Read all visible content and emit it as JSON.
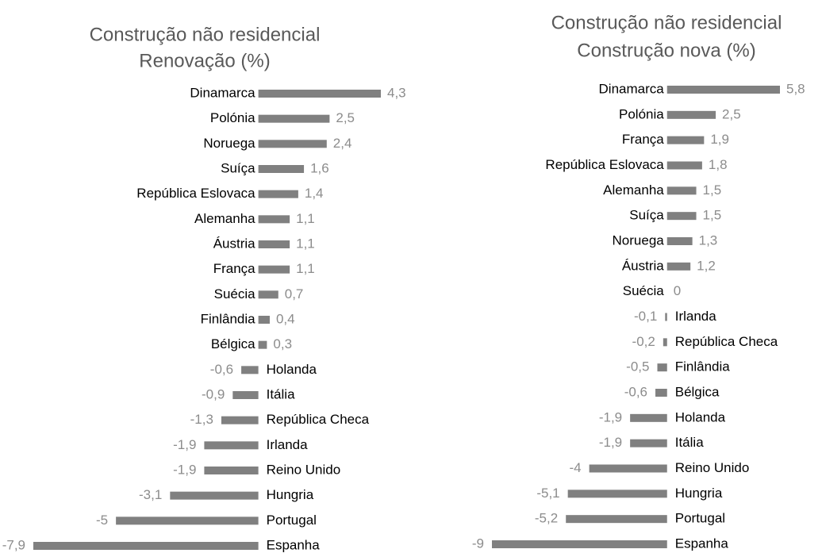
{
  "chart_data": [
    {
      "type": "bar",
      "orientation": "horizontal",
      "title": "Construção não residencial",
      "subtitle": "Renovação (%)",
      "color": "#808080",
      "categories": [
        "Dinamarca",
        "Polónia",
        "Noruega",
        "Suíça",
        "República Eslovaca",
        "Alemanha",
        "Áustria",
        "França",
        "Suécia",
        "Finlândia",
        "Bélgica",
        "Holanda",
        "Itália",
        "República Checa",
        "Irlanda",
        "Reino Unido",
        "Hungria",
        "Portugal",
        "Espanha"
      ],
      "values": [
        4.3,
        2.5,
        2.4,
        1.6,
        1.4,
        1.1,
        1.1,
        1.1,
        0.7,
        0.4,
        0.3,
        -0.6,
        -0.9,
        -1.3,
        -1.9,
        -1.9,
        -3.1,
        -5,
        -7.9
      ],
      "value_labels": [
        "4,3",
        "2,5",
        "2,4",
        "1,6",
        "1,4",
        "1,1",
        "1,1",
        "1,1",
        "0,7",
        "0,4",
        "0,3",
        "-0,6",
        "-0,9",
        "-1,3",
        "-1,9",
        "-1,9",
        "-3,1",
        "-5",
        "-7,9"
      ]
    },
    {
      "type": "bar",
      "orientation": "horizontal",
      "title": "Construção não residencial",
      "subtitle": "Construção nova (%)",
      "color": "#808080",
      "categories": [
        "Dinamarca",
        "Polónia",
        "França",
        "República Eslovaca",
        "Alemanha",
        "Suíça",
        "Noruega",
        "Áustria",
        "Suécia",
        "Irlanda",
        "República Checa",
        "Finlândia",
        "Bélgica",
        "Holanda",
        "Itália",
        "Reino Unido",
        "Hungria",
        "Portugal",
        "Espanha"
      ],
      "values": [
        5.8,
        2.5,
        1.9,
        1.8,
        1.5,
        1.5,
        1.3,
        1.2,
        0,
        -0.1,
        -0.2,
        -0.5,
        -0.6,
        -1.9,
        -1.9,
        -4,
        -5.1,
        -5.2,
        -9
      ],
      "value_labels": [
        "5,8",
        "2,5",
        "1,9",
        "1,8",
        "1,5",
        "1,5",
        "1,3",
        "1,2",
        "0",
        "-0,1",
        "-0,2",
        "-0,5",
        "-0,6",
        "-1,9",
        "-1,9",
        "-4",
        "-5,1",
        "-5,2",
        "-9"
      ]
    }
  ]
}
